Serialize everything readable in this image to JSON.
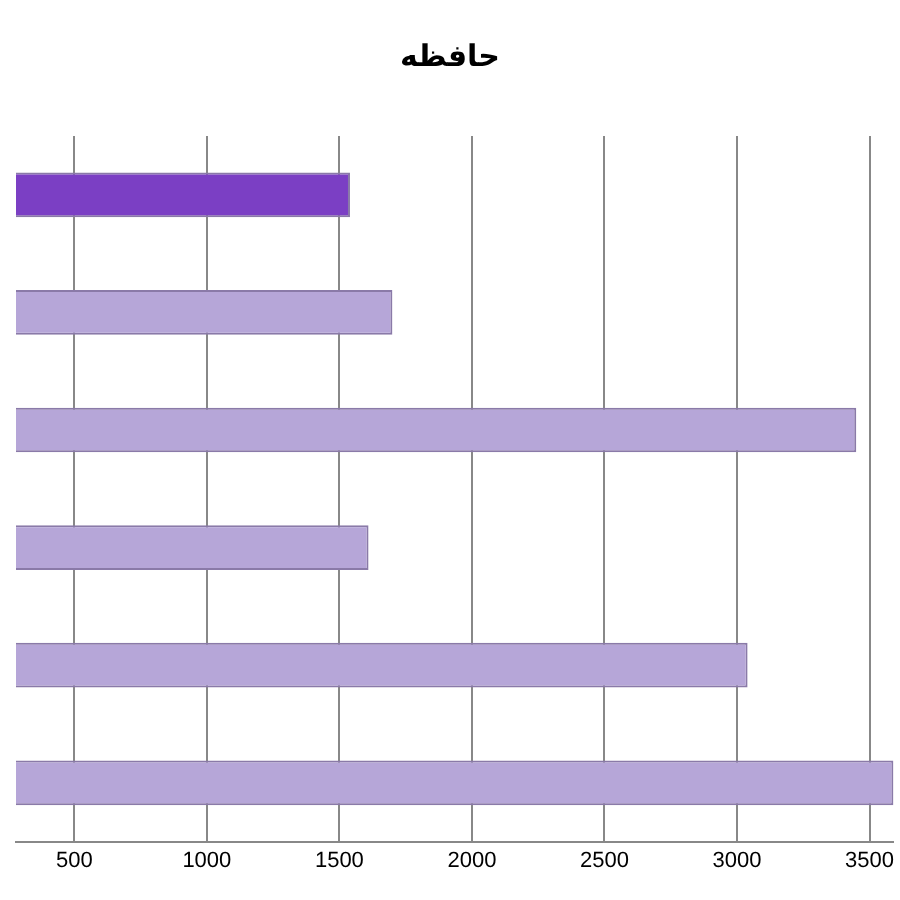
{
  "chart_data": {
    "type": "bar",
    "orientation": "horizontal",
    "title": "حافظه",
    "categories": [
      null,
      null,
      null,
      null,
      null,
      null
    ],
    "values": [
      1540,
      1700,
      3450,
      1610,
      3040,
      3590
    ],
    "colors": [
      "#7b3fc4",
      "#b6a6d8",
      "#b6a6d8",
      "#b6a6d8",
      "#b6a6d8",
      "#b6a6d8"
    ],
    "xlim": [
      280,
      3590
    ],
    "xticks": [
      500,
      1000,
      1500,
      2000,
      2500,
      3000,
      3500
    ],
    "grid": "x",
    "tick_labels": "x",
    "legend": false
  }
}
